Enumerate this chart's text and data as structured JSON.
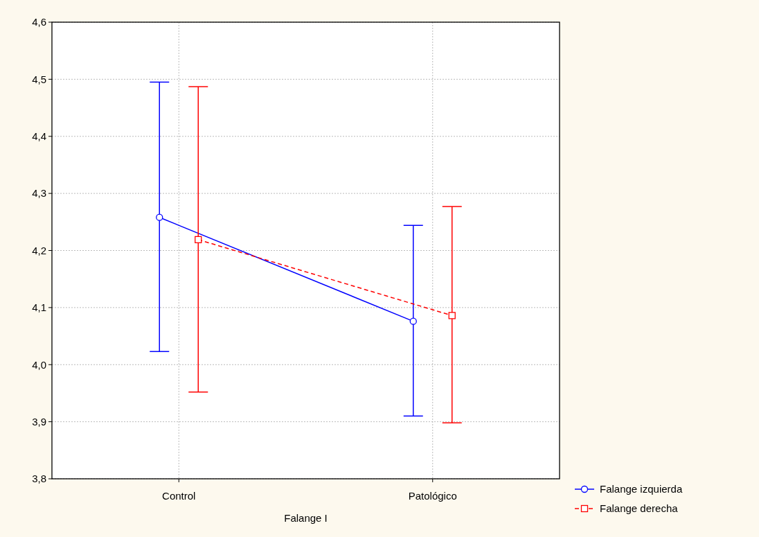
{
  "chart_data": {
    "type": "line",
    "xlabel": "Falange I",
    "categories": [
      "Control",
      "Patológico"
    ],
    "series": [
      {
        "name": "Falange izquierda",
        "color": "#0000ff",
        "marker": "circle",
        "line_style": "solid",
        "values": [
          4.258,
          4.076
        ],
        "errors": [
          [
            4.023,
            4.495
          ],
          [
            3.91,
            4.244
          ]
        ]
      },
      {
        "name": "Falange derecha",
        "color": "#ff0000",
        "marker": "square",
        "line_style": "dashed",
        "values": [
          4.219,
          4.086
        ],
        "errors": [
          [
            3.952,
            4.487
          ],
          [
            3.898,
            4.277
          ]
        ]
      }
    ],
    "ylim": [
      3.8,
      4.6
    ],
    "yticks": [
      {
        "value": 3.8,
        "label": "3,8"
      },
      {
        "value": 3.9,
        "label": "3,9"
      },
      {
        "value": 4.0,
        "label": "4,0"
      },
      {
        "value": 4.1,
        "label": "4,1"
      },
      {
        "value": 4.2,
        "label": "4,2"
      },
      {
        "value": 4.3,
        "label": "4,3"
      },
      {
        "value": 4.4,
        "label": "4,4"
      },
      {
        "value": 4.5,
        "label": "4,5"
      },
      {
        "value": 4.6,
        "label": "4,6"
      }
    ],
    "grid": true,
    "legend": "bottom right"
  }
}
